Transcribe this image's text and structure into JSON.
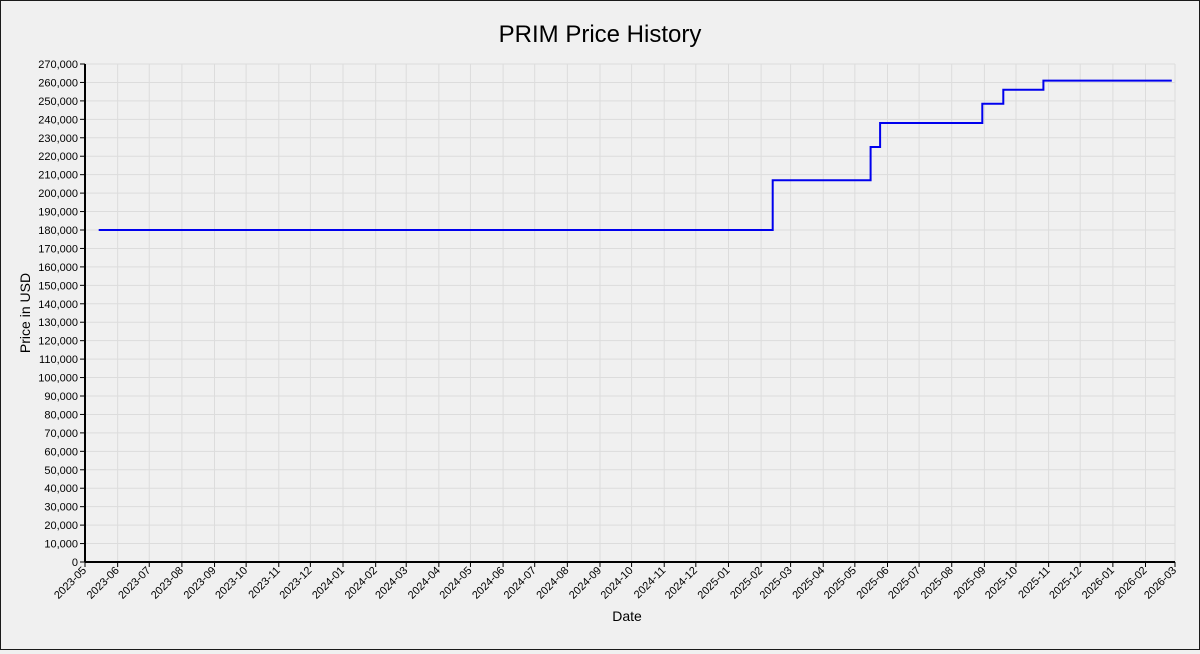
{
  "chart_data": {
    "type": "line",
    "title": "PRIM Price History",
    "xlabel": "Date",
    "ylabel": "Price in USD",
    "xlim": [
      "2023-05-01",
      "2026-03-01"
    ],
    "ylim": [
      0,
      270000
    ],
    "y_ticks": [
      0,
      10000,
      20000,
      30000,
      40000,
      50000,
      60000,
      70000,
      80000,
      90000,
      100000,
      110000,
      120000,
      130000,
      140000,
      150000,
      160000,
      170000,
      180000,
      190000,
      200000,
      210000,
      220000,
      230000,
      240000,
      250000,
      260000,
      270000
    ],
    "y_tick_labels": [
      "0",
      "10,000",
      "20,000",
      "30,000",
      "40,000",
      "50,000",
      "60,000",
      "70,000",
      "80,000",
      "90,000",
      "100,000",
      "110,000",
      "120,000",
      "130,000",
      "140,000",
      "150,000",
      "160,000",
      "170,000",
      "180,000",
      "190,000",
      "200,000",
      "210,000",
      "220,000",
      "230,000",
      "240,000",
      "250,000",
      "260,000",
      "270,000"
    ],
    "x_tick_labels": [
      "2023-05",
      "2023-06",
      "2023-07",
      "2023-08",
      "2023-09",
      "2023-10",
      "2023-11",
      "2023-12",
      "2024-01",
      "2024-02",
      "2024-03",
      "2024-04",
      "2024-05",
      "2024-06",
      "2024-07",
      "2024-08",
      "2024-09",
      "2024-10",
      "2024-11",
      "2024-12",
      "2025-01",
      "2025-02",
      "2025-03",
      "2025-04",
      "2025-05",
      "2025-06",
      "2025-07",
      "2025-08",
      "2025-09",
      "2025-10",
      "2025-11",
      "2025-12",
      "2026-01",
      "2026-02",
      "2026-03"
    ],
    "grid": true,
    "series": [
      {
        "color": "#0000ee",
        "step": true,
        "points": [
          {
            "x": "2023-05-14",
            "y": 180000
          },
          {
            "x": "2025-02-12",
            "y": 207000
          },
          {
            "x": "2025-05-16",
            "y": 225000
          },
          {
            "x": "2025-05-25",
            "y": 238000
          },
          {
            "x": "2025-08-30",
            "y": 248500
          },
          {
            "x": "2025-09-19",
            "y": 256000
          },
          {
            "x": "2025-10-27",
            "y": 261000
          },
          {
            "x": "2026-02-26",
            "y": 261000
          }
        ]
      }
    ]
  }
}
